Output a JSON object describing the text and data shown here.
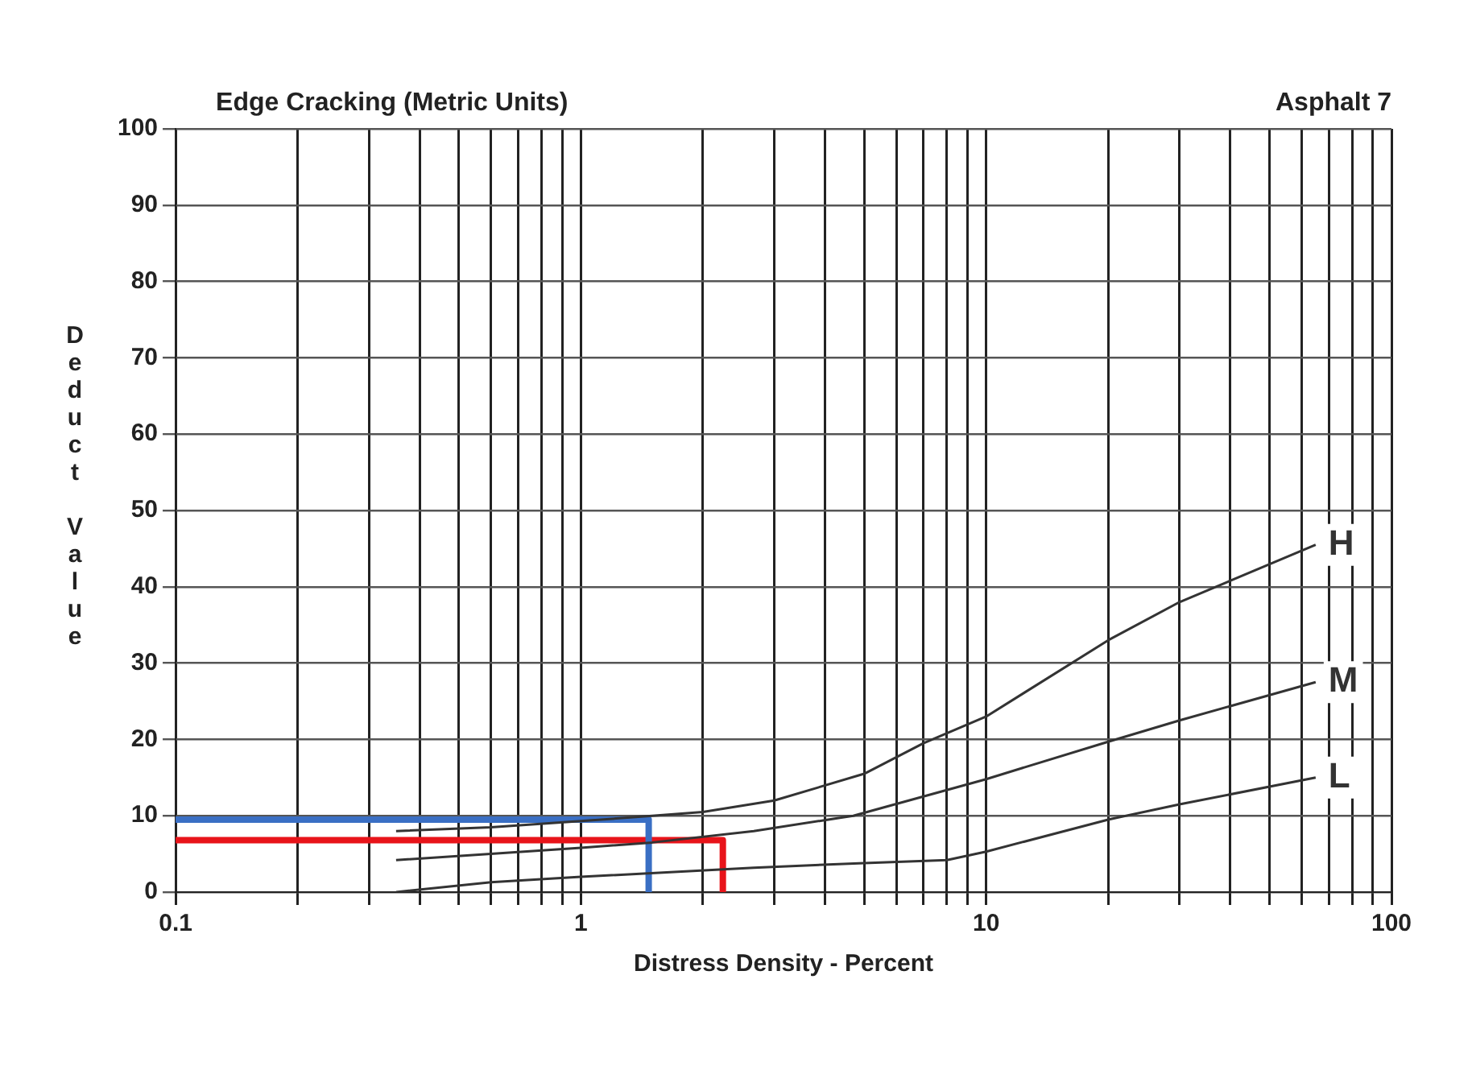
{
  "chart_data": {
    "type": "line",
    "title": "Edge Cracking (Metric Units)",
    "subtitle": "Asphalt 7",
    "xlabel": "Distress Density - Percent",
    "ylabel": "Deduct Value",
    "log": "x",
    "xlim": [
      0.1,
      100
    ],
    "ylim": [
      0,
      100
    ],
    "xticks": [
      0.1,
      {
        "value": 0.2,
        "label": null
      },
      {
        "value": 0.3,
        "label": null
      },
      {
        "value": 0.4,
        "label": null
      },
      {
        "value": 0.5,
        "label": null
      },
      {
        "value": 0.6,
        "label": null
      },
      {
        "value": 0.7,
        "label": null
      },
      {
        "value": 0.8,
        "label": null
      },
      {
        "value": 0.9,
        "label": null
      },
      1,
      {
        "value": 2,
        "label": null
      },
      {
        "value": 3,
        "label": null
      },
      {
        "value": 4,
        "label": null
      },
      {
        "value": 5,
        "label": null
      },
      {
        "value": 6,
        "label": null
      },
      {
        "value": 7,
        "label": null
      },
      {
        "value": 8,
        "label": null
      },
      {
        "value": 9,
        "label": null
      },
      10,
      {
        "value": 20,
        "label": null
      },
      {
        "value": 30,
        "label": null
      },
      {
        "value": 40,
        "label": null
      },
      {
        "value": 50,
        "label": null
      },
      {
        "value": 60,
        "label": null
      },
      {
        "value": 70,
        "label": null
      },
      {
        "value": 80,
        "label": null
      },
      {
        "value": 90,
        "label": null
      },
      100
    ],
    "yticks": [
      0,
      10,
      20,
      30,
      40,
      50,
      60,
      70,
      80,
      90,
      100
    ],
    "grid": true,
    "legend": false,
    "marker": "none",
    "series": [
      {
        "name": "H",
        "color": "#333333",
        "x": [
          0.35,
          0.6,
          1,
          1.5,
          2,
          3,
          5,
          7,
          10,
          20,
          30,
          65
        ],
        "values": [
          8,
          8.5,
          9.3,
          10,
          10.5,
          12,
          15.5,
          19.5,
          23,
          33,
          38,
          45.5
        ]
      },
      {
        "name": "M",
        "color": "#333333",
        "x": [
          0.35,
          0.6,
          1,
          1.5,
          2.67,
          4.7,
          10,
          20,
          30,
          65
        ],
        "values": [
          4.2,
          5,
          5.8,
          6.5,
          8,
          10,
          14.8,
          19.7,
          22.5,
          27.5
        ]
      },
      {
        "name": "L",
        "color": "#333333",
        "x": [
          0.35,
          0.6,
          1,
          2.67,
          5,
          8,
          10,
          20,
          30,
          65
        ],
        "values": [
          0,
          1.3,
          2,
          3.2,
          3.8,
          4.2,
          5.3,
          9.5,
          11.5,
          15
        ]
      },
      {
        "color": "#3a6fc4",
        "x": [
          0.1,
          1.47,
          1.47
        ],
        "values": [
          9.5,
          9.5,
          0
        ]
      },
      {
        "color": "#e8141a",
        "x": [
          0.1,
          2.24,
          2.24
        ],
        "values": [
          6.8,
          6.8,
          0
        ]
      }
    ]
  }
}
